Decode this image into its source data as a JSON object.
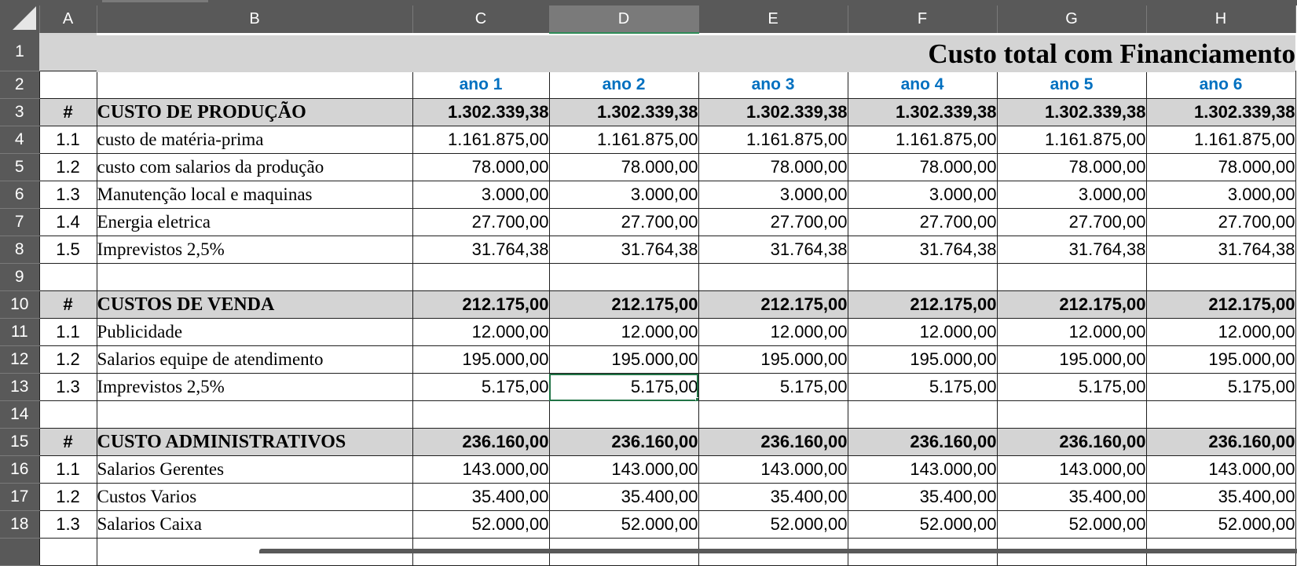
{
  "columns": [
    "A",
    "B",
    "C",
    "D",
    "E",
    "F",
    "G",
    "H"
  ],
  "active_column": "D",
  "title": "Custo total com Financiamento",
  "years": [
    "ano 1",
    "ano 2",
    "ano 3",
    "ano 4",
    "ano 5",
    "ano 6"
  ],
  "rows": [
    {
      "num": "1",
      "type": "title"
    },
    {
      "num": "2",
      "type": "years"
    },
    {
      "num": "3",
      "type": "section",
      "idx": "#",
      "desc": "CUSTO DE PRODUÇÃO",
      "values": [
        "1.302.339,38",
        "1.302.339,38",
        "1.302.339,38",
        "1.302.339,38",
        "1.302.339,38",
        "1.302.339,38"
      ]
    },
    {
      "num": "4",
      "type": "item",
      "idx": "1.1",
      "desc": "custo de matéria-prima",
      "values": [
        "1.161.875,00",
        "1.161.875,00",
        "1.161.875,00",
        "1.161.875,00",
        "1.161.875,00",
        "1.161.875,00"
      ]
    },
    {
      "num": "5",
      "type": "item",
      "idx": "1.2",
      "desc": "custo com salarios da produção",
      "values": [
        "78.000,00",
        "78.000,00",
        "78.000,00",
        "78.000,00",
        "78.000,00",
        "78.000,00"
      ]
    },
    {
      "num": "6",
      "type": "item",
      "idx": "1.3",
      "desc": "Manutenção local e maquinas",
      "values": [
        "3.000,00",
        "3.000,00",
        "3.000,00",
        "3.000,00",
        "3.000,00",
        "3.000,00"
      ]
    },
    {
      "num": "7",
      "type": "item",
      "idx": "1.4",
      "desc": "Energia eletrica",
      "values": [
        "27.700,00",
        "27.700,00",
        "27.700,00",
        "27.700,00",
        "27.700,00",
        "27.700,00"
      ]
    },
    {
      "num": "8",
      "type": "item",
      "idx": "1.5",
      "desc": "Imprevistos 2,5%",
      "values": [
        "31.764,38",
        "31.764,38",
        "31.764,38",
        "31.764,38",
        "31.764,38",
        "31.764,38"
      ]
    },
    {
      "num": "9",
      "type": "blank"
    },
    {
      "num": "10",
      "type": "section",
      "idx": "#",
      "desc": "CUSTOS DE VENDA",
      "values": [
        "212.175,00",
        "212.175,00",
        "212.175,00",
        "212.175,00",
        "212.175,00",
        "212.175,00"
      ]
    },
    {
      "num": "11",
      "type": "item",
      "idx": "1.1",
      "desc": "Publicidade",
      "values": [
        "12.000,00",
        "12.000,00",
        "12.000,00",
        "12.000,00",
        "12.000,00",
        "12.000,00"
      ]
    },
    {
      "num": "12",
      "type": "item",
      "idx": "1.2",
      "desc": "Salarios equipe de atendimento",
      "values": [
        "195.000,00",
        "195.000,00",
        "195.000,00",
        "195.000,00",
        "195.000,00",
        "195.000,00"
      ]
    },
    {
      "num": "13",
      "type": "item",
      "idx": "1.3",
      "desc": "Imprevistos 2,5%",
      "values": [
        "5.175,00",
        "5.175,00",
        "5.175,00",
        "5.175,00",
        "5.175,00",
        "5.175,00"
      ]
    },
    {
      "num": "14",
      "type": "blank"
    },
    {
      "num": "15",
      "type": "section",
      "idx": "#",
      "desc": "CUSTO ADMINISTRATIVOS",
      "values": [
        "236.160,00",
        "236.160,00",
        "236.160,00",
        "236.160,00",
        "236.160,00",
        "236.160,00"
      ]
    },
    {
      "num": "16",
      "type": "item",
      "idx": "1.1",
      "desc": "Salarios Gerentes",
      "values": [
        "143.000,00",
        "143.000,00",
        "143.000,00",
        "143.000,00",
        "143.000,00",
        "143.000,00"
      ]
    },
    {
      "num": "17",
      "type": "item",
      "idx": "1.2",
      "desc": "Custos Varios",
      "values": [
        "35.400,00",
        "35.400,00",
        "35.400,00",
        "35.400,00",
        "35.400,00",
        "35.400,00"
      ]
    },
    {
      "num": "18",
      "type": "item",
      "idx": "1.3",
      "desc": "Salarios Caixa",
      "values": [
        "52.000,00",
        "52.000,00",
        "52.000,00",
        "52.000,00",
        "52.000,00",
        "52.000,00"
      ]
    }
  ],
  "selected_cell": "D13"
}
